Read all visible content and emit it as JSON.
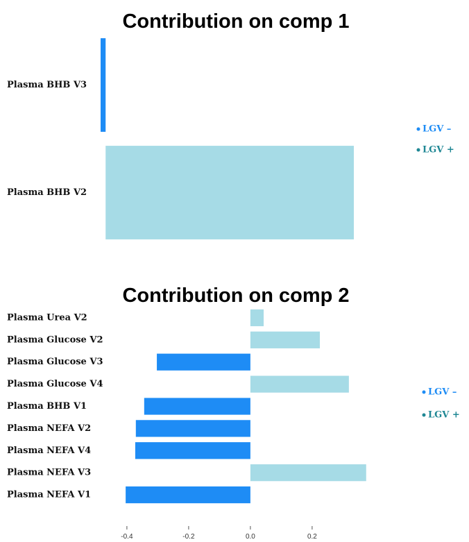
{
  "chart_data": [
    {
      "type": "bar",
      "title": "Contribution on comp 1",
      "categories": [
        "Plasma BHB V3",
        "Plasma BHB V2"
      ],
      "series": [
        {
          "name": "LGV –",
          "color": "#1e8cf5",
          "legend_color": "#1e8cf5",
          "values": [
            -0.02,
            null
          ]
        },
        {
          "name": "LGV +",
          "color": "#a6dbe6",
          "legend_color": "#1f8794",
          "values": [
            null,
            0.99
          ]
        }
      ],
      "xlim": [
        -0.02,
        0.99
      ]
    },
    {
      "type": "bar",
      "title": "Contribution on comp 2",
      "categories": [
        "Plasma Urea V2",
        "Plasma Glucose V2",
        "Plasma Glucose V3",
        "Plasma Glucose V4",
        "Plasma BHB V1",
        "Plasma NEFA V2",
        "Plasma NEFA V4",
        "Plasma NEFA V3",
        "Plasma NEFA V1"
      ],
      "series": [
        {
          "name": "LGV –",
          "color": "#1e8cf5",
          "legend_color": "#1e8cf5",
          "values": [
            null,
            null,
            -0.303,
            null,
            -0.344,
            -0.371,
            -0.373,
            null,
            -0.404
          ]
        },
        {
          "name": "LGV +",
          "color": "#a6dbe6",
          "legend_color": "#1f8794",
          "values": [
            0.043,
            0.225,
            null,
            0.319,
            null,
            null,
            null,
            0.375,
            null
          ]
        }
      ],
      "xlim": [
        -0.42,
        0.38
      ],
      "xticks": [
        -0.4,
        -0.2,
        {
          "value": 0,
          "label": "0.0"
        },
        0.2
      ]
    }
  ]
}
